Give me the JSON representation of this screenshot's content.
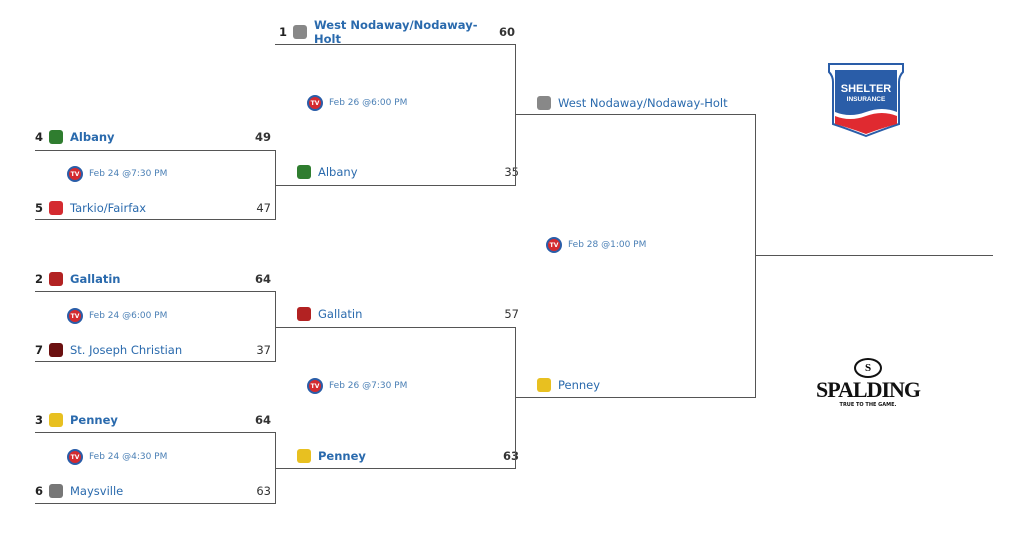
{
  "round1": [
    {
      "date": "Feb 24 @7:30 PM",
      "top": {
        "seed": "4",
        "name": "Albany",
        "score": "49",
        "win": true,
        "color": "#2f7d2f"
      },
      "bottom": {
        "seed": "5",
        "name": "Tarkio/Fairfax",
        "score": "47",
        "win": false,
        "color": "#d42a30"
      }
    },
    {
      "date": "Feb 24 @6:00 PM",
      "top": {
        "seed": "2",
        "name": "Gallatin",
        "score": "64",
        "win": true,
        "color": "#b22222"
      },
      "bottom": {
        "seed": "7",
        "name": "St. Joseph Christian",
        "score": "37",
        "win": false,
        "color": "#6b1010"
      }
    },
    {
      "date": "Feb 24 @4:30 PM",
      "top": {
        "seed": "3",
        "name": "Penney",
        "score": "64",
        "win": true,
        "color": "#e8c020"
      },
      "bottom": {
        "seed": "6",
        "name": "Maysville",
        "score": "63",
        "win": false,
        "color": "#777777"
      }
    }
  ],
  "round2": [
    {
      "date": "Feb 26 @6:00 PM",
      "top": {
        "seed": "1",
        "name": "West Nodaway/Nodaway-Holt",
        "score": "60",
        "win": true,
        "color": "#888888"
      },
      "bottom": {
        "seed": "",
        "name": "Albany",
        "score": "35",
        "win": false,
        "color": "#2f7d2f"
      }
    },
    {
      "date": "Feb 26 @7:30 PM",
      "top": {
        "seed": "",
        "name": "Gallatin",
        "score": "57",
        "win": false,
        "color": "#b22222"
      },
      "bottom": {
        "seed": "",
        "name": "Penney",
        "score": "63",
        "win": true,
        "color": "#e8c020"
      }
    }
  ],
  "final": {
    "date": "Feb 28 @1:00 PM",
    "top": {
      "seed": "",
      "name": "West Nodaway/Nodaway-Holt",
      "score": "",
      "win": false,
      "color": "#888888"
    },
    "bottom": {
      "seed": "",
      "name": "Penney",
      "score": "",
      "win": false,
      "color": "#e8c020"
    }
  },
  "tv_icon": "TV",
  "sponsors": {
    "shelter": {
      "line1": "SHELTER",
      "line2": "INSURANCE"
    },
    "spalding": {
      "name": "SPALDING",
      "tagline": "TRUE TO THE GAME."
    }
  }
}
